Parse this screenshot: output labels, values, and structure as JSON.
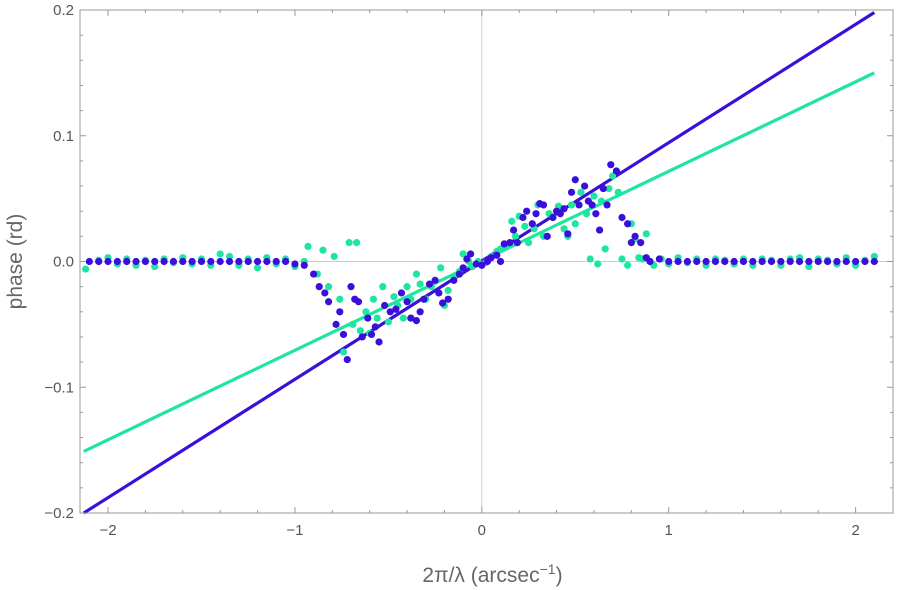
{
  "chart_data": {
    "type": "scatter",
    "xlabel": "2π/λ (arcsec⁻¹)",
    "xlabel_parts": {
      "main": "2π/λ (arcsec",
      "sup": "−1",
      "close": ")"
    },
    "ylabel": "phase (rd)",
    "xlim": [
      -2.15,
      2.2
    ],
    "ylim": [
      -0.2,
      0.2
    ],
    "x_ticks": [
      -2,
      -1,
      0,
      1,
      2
    ],
    "x_tick_labels": [
      "−2",
      "−1",
      "0",
      "1",
      "2"
    ],
    "y_ticks": [
      -0.2,
      -0.1,
      0.0,
      0.1,
      0.2
    ],
    "y_tick_labels": [
      "−0.2",
      "−0.1",
      "0.0",
      "0.1",
      "0.2"
    ],
    "grid": "zero-lines-only",
    "legend": "none",
    "colors": {
      "teal": "#1ee6a0",
      "blue": "#3b0fd9",
      "frame": "#999999",
      "zero_line": "#cccccc"
    },
    "fit_lines": [
      {
        "color": "#1ee6a0",
        "points": [
          [
            -2.13,
            -0.151
          ],
          [
            2.1,
            0.15
          ]
        ]
      },
      {
        "color": "#3b0fd9",
        "points": [
          [
            -2.13,
            -0.2
          ],
          [
            2.1,
            0.198
          ]
        ]
      }
    ],
    "series": [
      {
        "color": "#1ee6a0",
        "points": [
          [
            -2.12,
            -0.006
          ],
          [
            -2.05,
            0.001
          ],
          [
            -2.0,
            0.003
          ],
          [
            -1.95,
            -0.002
          ],
          [
            -1.9,
            0.002
          ],
          [
            -1.85,
            -0.003
          ],
          [
            -1.8,
            0.001
          ],
          [
            -1.75,
            -0.004
          ],
          [
            -1.7,
            0.002
          ],
          [
            -1.65,
            -0.001
          ],
          [
            -1.6,
            0.003
          ],
          [
            -1.55,
            -0.002
          ],
          [
            -1.5,
            0.002
          ],
          [
            -1.45,
            -0.003
          ],
          [
            -1.4,
            0.006
          ],
          [
            -1.35,
            0.004
          ],
          [
            -1.3,
            -0.003
          ],
          [
            -1.25,
            0.002
          ],
          [
            -1.2,
            -0.005
          ],
          [
            -1.15,
            0.003
          ],
          [
            -1.1,
            -0.002
          ],
          [
            -1.05,
            0.002
          ],
          [
            -1.0,
            -0.004
          ],
          [
            -0.95,
            0.0
          ],
          [
            -0.93,
            0.012
          ],
          [
            -0.88,
            -0.01
          ],
          [
            -0.85,
            0.009
          ],
          [
            -0.82,
            -0.02
          ],
          [
            -0.79,
            0.004
          ],
          [
            -0.76,
            -0.03
          ],
          [
            -0.74,
            -0.072
          ],
          [
            -0.71,
            0.015
          ],
          [
            -0.69,
            -0.05
          ],
          [
            -0.67,
            0.015
          ],
          [
            -0.65,
            -0.055
          ],
          [
            -0.62,
            -0.04
          ],
          [
            -0.6,
            -0.057
          ],
          [
            -0.58,
            -0.03
          ],
          [
            -0.56,
            -0.045
          ],
          [
            -0.53,
            -0.02
          ],
          [
            -0.5,
            -0.048
          ],
          [
            -0.47,
            -0.028
          ],
          [
            -0.45,
            -0.035
          ],
          [
            -0.42,
            -0.045
          ],
          [
            -0.4,
            -0.02
          ],
          [
            -0.38,
            -0.03
          ],
          [
            -0.35,
            -0.01
          ],
          [
            -0.33,
            -0.018
          ],
          [
            -0.3,
            -0.03
          ],
          [
            -0.27,
            -0.02
          ],
          [
            -0.25,
            -0.015
          ],
          [
            -0.22,
            -0.005
          ],
          [
            -0.2,
            -0.035
          ],
          [
            -0.18,
            -0.023
          ],
          [
            -0.15,
            -0.012
          ],
          [
            -0.12,
            -0.008
          ],
          [
            -0.1,
            0.006
          ],
          [
            -0.07,
            0.0
          ],
          [
            -0.05,
            -0.004
          ],
          [
            -0.02,
            0.0
          ],
          [
            0.02,
            -0.001
          ],
          [
            0.05,
            0.004
          ],
          [
            0.08,
            0.008
          ],
          [
            0.1,
            0.01
          ],
          [
            0.13,
            0.012
          ],
          [
            0.16,
            0.032
          ],
          [
            0.18,
            0.02
          ],
          [
            0.2,
            0.036
          ],
          [
            0.23,
            0.028
          ],
          [
            0.25,
            0.015
          ],
          [
            0.28,
            0.026
          ],
          [
            0.3,
            0.045
          ],
          [
            0.33,
            0.02
          ],
          [
            0.36,
            0.038
          ],
          [
            0.38,
            0.035
          ],
          [
            0.41,
            0.044
          ],
          [
            0.44,
            0.026
          ],
          [
            0.46,
            0.02
          ],
          [
            0.48,
            0.045
          ],
          [
            0.5,
            0.03
          ],
          [
            0.53,
            0.055
          ],
          [
            0.56,
            0.038
          ],
          [
            0.58,
            0.002
          ],
          [
            0.6,
            0.052
          ],
          [
            0.62,
            -0.002
          ],
          [
            0.64,
            0.048
          ],
          [
            0.66,
            0.01
          ],
          [
            0.68,
            0.058
          ],
          [
            0.7,
            0.068
          ],
          [
            0.73,
            0.055
          ],
          [
            0.75,
            0.002
          ],
          [
            0.78,
            -0.003
          ],
          [
            0.8,
            0.03
          ],
          [
            0.82,
            0.018
          ],
          [
            0.84,
            0.003
          ],
          [
            0.86,
            0.002
          ],
          [
            0.88,
            0.022
          ],
          [
            0.9,
            0.0
          ],
          [
            0.92,
            -0.003
          ],
          [
            0.96,
            0.002
          ],
          [
            1.0,
            -0.002
          ],
          [
            1.05,
            0.003
          ],
          [
            1.1,
            -0.001
          ],
          [
            1.15,
            0.002
          ],
          [
            1.2,
            -0.003
          ],
          [
            1.25,
            0.002
          ],
          [
            1.3,
            0.001
          ],
          [
            1.35,
            -0.002
          ],
          [
            1.4,
            0.002
          ],
          [
            1.45,
            -0.003
          ],
          [
            1.5,
            0.002
          ],
          [
            1.55,
            0.001
          ],
          [
            1.6,
            -0.003
          ],
          [
            1.65,
            0.002
          ],
          [
            1.7,
            0.003
          ],
          [
            1.75,
            -0.004
          ],
          [
            1.8,
            0.002
          ],
          [
            1.85,
            0.001
          ],
          [
            1.9,
            -0.002
          ],
          [
            1.95,
            0.003
          ],
          [
            2.0,
            -0.003
          ],
          [
            2.05,
            0.001
          ],
          [
            2.1,
            0.004
          ]
        ]
      },
      {
        "color": "#3b0fd9",
        "points": [
          [
            -2.1,
            0.0
          ],
          [
            -2.05,
            0.0
          ],
          [
            -2.0,
            0.0
          ],
          [
            -1.95,
            0.0
          ],
          [
            -1.9,
            0.0
          ],
          [
            -1.85,
            0.0
          ],
          [
            -1.8,
            0.0
          ],
          [
            -1.75,
            0.0
          ],
          [
            -1.7,
            0.0
          ],
          [
            -1.65,
            0.0
          ],
          [
            -1.6,
            0.0
          ],
          [
            -1.55,
            0.0
          ],
          [
            -1.5,
            0.0
          ],
          [
            -1.45,
            0.0
          ],
          [
            -1.4,
            0.0
          ],
          [
            -1.35,
            0.0
          ],
          [
            -1.3,
            0.0
          ],
          [
            -1.25,
            0.0
          ],
          [
            -1.2,
            0.0
          ],
          [
            -1.15,
            0.0
          ],
          [
            -1.1,
            0.0
          ],
          [
            -1.05,
            0.0
          ],
          [
            -1.0,
            -0.002
          ],
          [
            -0.95,
            -0.003
          ],
          [
            -0.9,
            -0.01
          ],
          [
            -0.87,
            -0.02
          ],
          [
            -0.84,
            -0.025
          ],
          [
            -0.82,
            -0.032
          ],
          [
            -0.78,
            -0.05
          ],
          [
            -0.76,
            -0.04
          ],
          [
            -0.74,
            -0.058
          ],
          [
            -0.72,
            -0.078
          ],
          [
            -0.7,
            -0.02
          ],
          [
            -0.68,
            -0.03
          ],
          [
            -0.66,
            -0.032
          ],
          [
            -0.64,
            -0.06
          ],
          [
            -0.61,
            -0.045
          ],
          [
            -0.59,
            -0.058
          ],
          [
            -0.57,
            -0.052
          ],
          [
            -0.55,
            -0.064
          ],
          [
            -0.52,
            -0.035
          ],
          [
            -0.49,
            -0.04
          ],
          [
            -0.46,
            -0.038
          ],
          [
            -0.43,
            -0.025
          ],
          [
            -0.4,
            -0.032
          ],
          [
            -0.38,
            -0.045
          ],
          [
            -0.35,
            -0.047
          ],
          [
            -0.33,
            -0.04
          ],
          [
            -0.31,
            -0.03
          ],
          [
            -0.28,
            -0.018
          ],
          [
            -0.25,
            -0.015
          ],
          [
            -0.23,
            -0.025
          ],
          [
            -0.21,
            -0.033
          ],
          [
            -0.18,
            -0.03
          ],
          [
            -0.15,
            -0.015
          ],
          [
            -0.12,
            -0.01
          ],
          [
            -0.1,
            -0.005
          ],
          [
            -0.08,
            0.002
          ],
          [
            -0.06,
            0.006
          ],
          [
            -0.03,
            -0.002
          ],
          [
            0.0,
            -0.003
          ],
          [
            0.03,
            0.0
          ],
          [
            0.05,
            0.003
          ],
          [
            0.08,
            0.005
          ],
          [
            0.1,
            0.0
          ],
          [
            0.12,
            0.014
          ],
          [
            0.15,
            0.015
          ],
          [
            0.17,
            0.025
          ],
          [
            0.19,
            0.015
          ],
          [
            0.22,
            0.035
          ],
          [
            0.24,
            0.04
          ],
          [
            0.27,
            0.03
          ],
          [
            0.29,
            0.038
          ],
          [
            0.31,
            0.046
          ],
          [
            0.33,
            0.045
          ],
          [
            0.35,
            0.02
          ],
          [
            0.38,
            0.035
          ],
          [
            0.4,
            0.04
          ],
          [
            0.42,
            0.038
          ],
          [
            0.44,
            0.042
          ],
          [
            0.46,
            0.022
          ],
          [
            0.48,
            0.055
          ],
          [
            0.5,
            0.065
          ],
          [
            0.52,
            0.045
          ],
          [
            0.55,
            0.06
          ],
          [
            0.57,
            0.048
          ],
          [
            0.59,
            0.045
          ],
          [
            0.61,
            0.038
          ],
          [
            0.63,
            0.025
          ],
          [
            0.65,
            0.058
          ],
          [
            0.67,
            0.045
          ],
          [
            0.69,
            0.077
          ],
          [
            0.72,
            0.072
          ],
          [
            0.75,
            0.035
          ],
          [
            0.78,
            0.03
          ],
          [
            0.8,
            0.015
          ],
          [
            0.82,
            0.02
          ],
          [
            0.85,
            0.015
          ],
          [
            0.88,
            0.003
          ],
          [
            0.9,
            0.0
          ],
          [
            0.95,
            0.002
          ],
          [
            1.0,
            0.0
          ],
          [
            1.05,
            0.0
          ],
          [
            1.1,
            0.0
          ],
          [
            1.15,
            0.0
          ],
          [
            1.2,
            0.0
          ],
          [
            1.25,
            0.0
          ],
          [
            1.3,
            0.0
          ],
          [
            1.35,
            0.0
          ],
          [
            1.4,
            0.0
          ],
          [
            1.45,
            0.0
          ],
          [
            1.5,
            0.0
          ],
          [
            1.55,
            0.0
          ],
          [
            1.6,
            0.0
          ],
          [
            1.65,
            0.0
          ],
          [
            1.7,
            0.0
          ],
          [
            1.75,
            0.0
          ],
          [
            1.8,
            0.0
          ],
          [
            1.85,
            0.0
          ],
          [
            1.9,
            0.0
          ],
          [
            1.95,
            0.0
          ],
          [
            2.0,
            0.0
          ],
          [
            2.05,
            0.0
          ],
          [
            2.1,
            0.0
          ]
        ]
      }
    ]
  }
}
